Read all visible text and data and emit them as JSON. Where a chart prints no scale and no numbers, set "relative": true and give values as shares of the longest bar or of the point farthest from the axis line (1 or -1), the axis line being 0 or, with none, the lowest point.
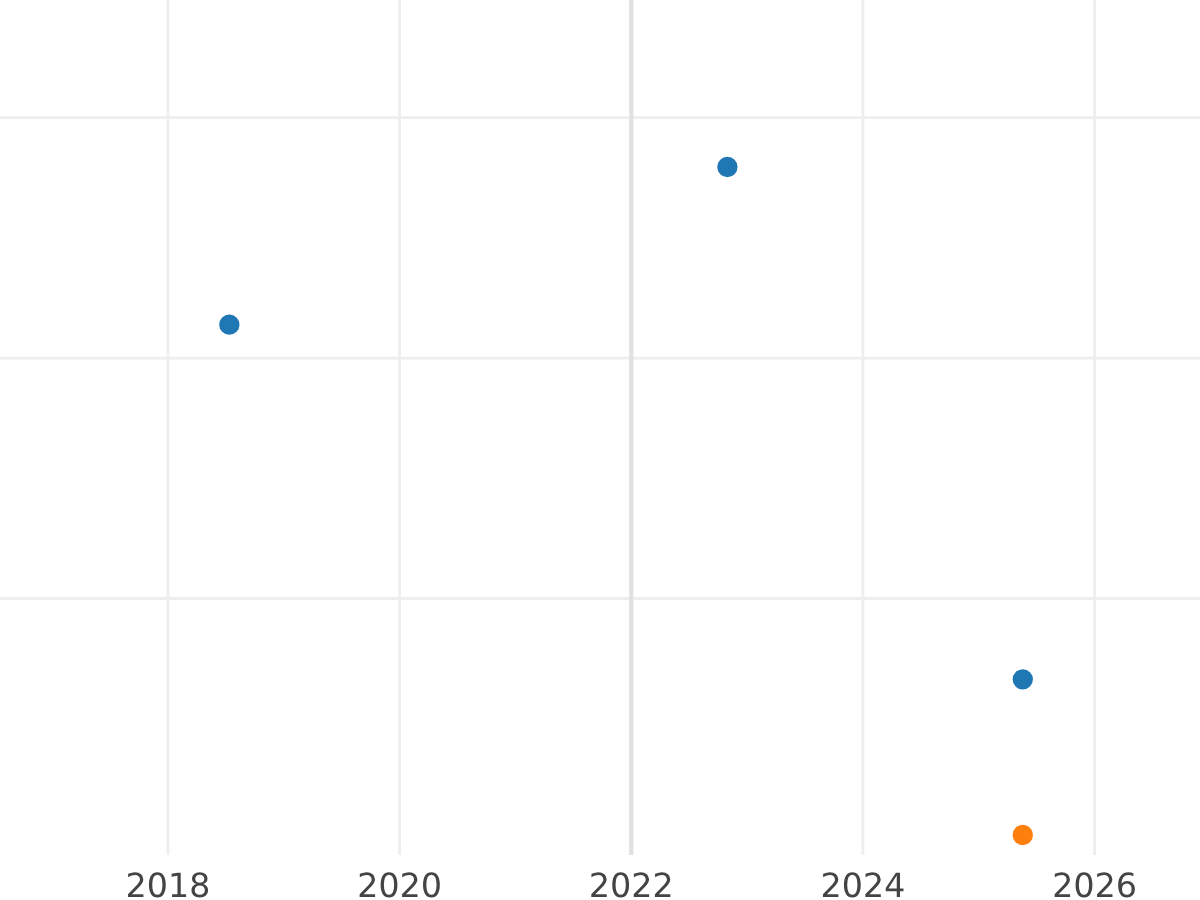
{
  "chart_data": {
    "type": "scatter",
    "relative": true,
    "series": [
      {
        "color": "#1f77b4",
        "x": [
          2018.53,
          2022.83,
          2025.38
        ],
        "values": [
          0.764,
          1,
          0.233
        ]
      },
      {
        "color": "#ff7f0e",
        "x": [
          2025.38
        ],
        "values": [
          0
        ]
      }
    ],
    "xlim": [
      2016.55,
      2026.91
    ],
    "xticks": [
      2018,
      2020,
      2022,
      2024,
      2026
    ],
    "ref_lines": [
      {
        "axis": "x",
        "value": 2022,
        "color": "#e0e0e0"
      }
    ],
    "grid": true,
    "marker": "circle"
  }
}
